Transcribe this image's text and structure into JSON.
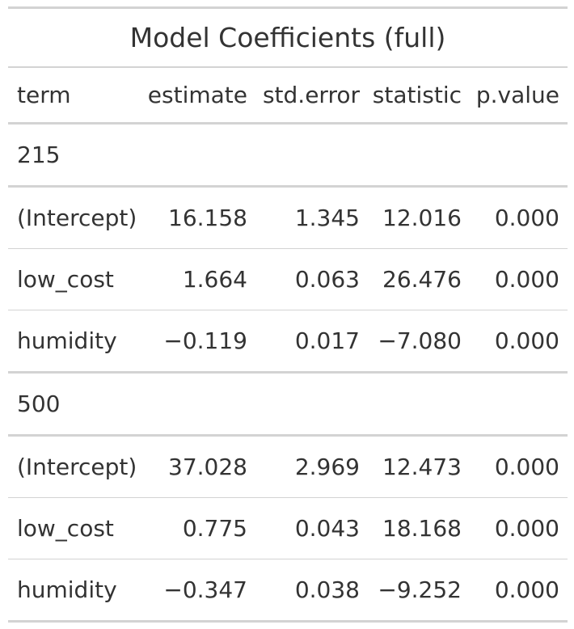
{
  "table": {
    "title": "Model Coefficients (full)",
    "columns": [
      "term",
      "estimate",
      "std.error",
      "statistic",
      "p.value"
    ],
    "groups": [
      {
        "label": "215",
        "rows": [
          [
            "(Intercept)",
            "16.158",
            "1.345",
            "12.016",
            "0.000"
          ],
          [
            "low_cost",
            "1.664",
            "0.063",
            "26.476",
            "0.000"
          ],
          [
            "humidity",
            "−0.119",
            "0.017",
            "−7.080",
            "0.000"
          ]
        ]
      },
      {
        "label": "500",
        "rows": [
          [
            "(Intercept)",
            "37.028",
            "2.969",
            "12.473",
            "0.000"
          ],
          [
            "low_cost",
            "0.775",
            "0.043",
            "18.168",
            "0.000"
          ],
          [
            "humidity",
            "−0.347",
            "0.038",
            "−9.252",
            "0.000"
          ]
        ]
      }
    ]
  }
}
